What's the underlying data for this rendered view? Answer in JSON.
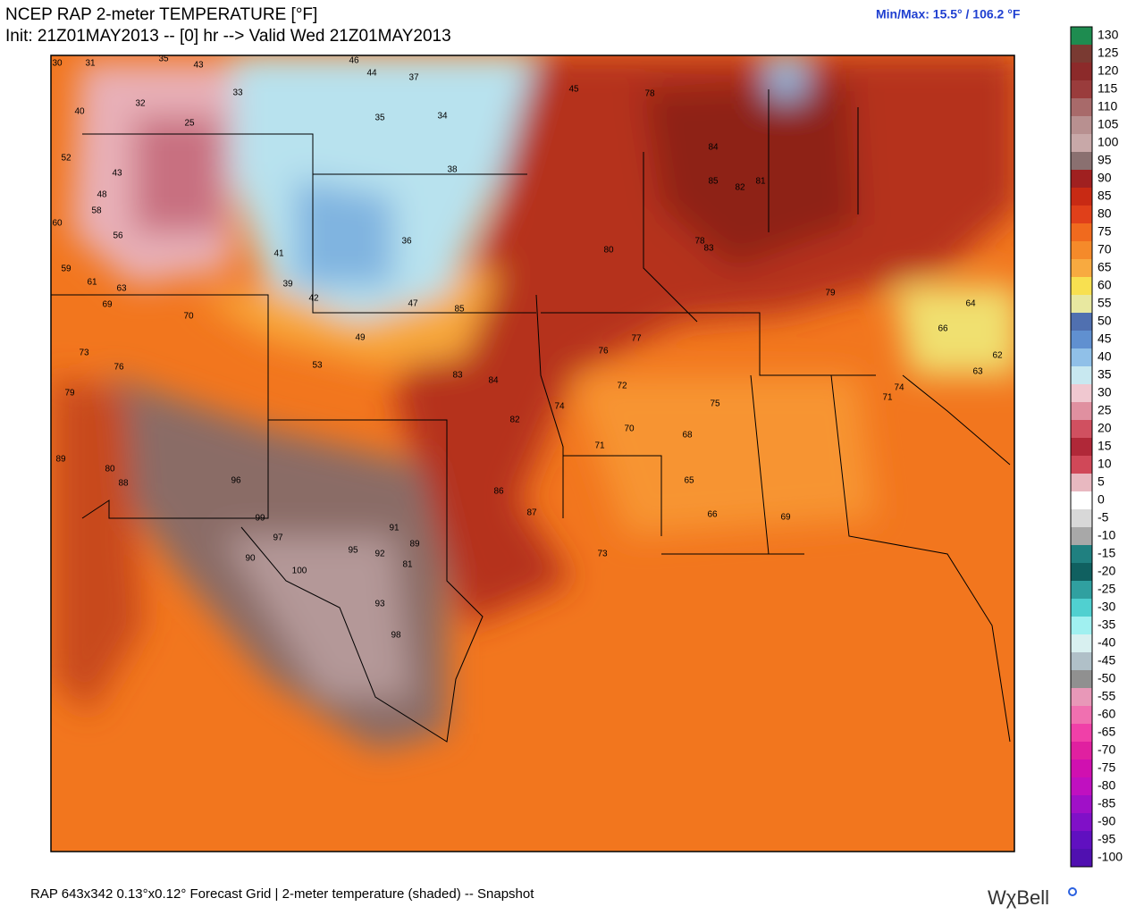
{
  "header": {
    "title": "NCEP RAP 2-meter TEMPERATURE [°F]",
    "init": "Init: 21Z01MAY2013 -- [0] hr --> Valid Wed 21Z01MAY2013",
    "minmax": "Min/Max:  15.5° / 106.2 °F"
  },
  "colorbar": {
    "ticks": [
      130,
      125,
      120,
      115,
      110,
      105,
      100,
      95,
      90,
      85,
      80,
      75,
      70,
      65,
      60,
      55,
      50,
      45,
      40,
      35,
      30,
      25,
      20,
      15,
      10,
      5,
      0,
      -5,
      -10,
      -15,
      -20,
      -25,
      -30,
      -35,
      -40,
      -45,
      -50,
      -55,
      -60,
      -65,
      -70,
      -75,
      -80,
      -85,
      -90,
      -95,
      -100
    ],
    "colors": [
      "#1e8c50",
      "#7a3a32",
      "#8c2a2a",
      "#9a3c3c",
      "#a86a6a",
      "#b89090",
      "#c8a8a8",
      "#8a7070",
      "#a02020",
      "#c82a14",
      "#e0401a",
      "#f06a1e",
      "#f58a2a",
      "#f8aa40",
      "#f8e050",
      "#e8e8a0",
      "#5070b0",
      "#6090d0",
      "#90c0e8",
      "#c8e8f0",
      "#f0c8d0",
      "#e090a0",
      "#d05060",
      "#b02838",
      "#d04858",
      "#e8b8c0",
      "#ffffff",
      "#d8d8d8",
      "#a8a8a8",
      "#208080",
      "#106060",
      "#30a0a0",
      "#50d0d0",
      "#a0f0f0",
      "#d8f0f0",
      "#b0c0c8",
      "#909090",
      "#e898b8",
      "#f070b0",
      "#f040a8",
      "#e020a0",
      "#d010b0",
      "#c010c0",
      "#a010c8",
      "#8010c8",
      "#6010c0",
      "#5010b0"
    ]
  },
  "stations": [
    30,
    31,
    35,
    43,
    46,
    44,
    37,
    33,
    40,
    32,
    25,
    52,
    43,
    48,
    58,
    56,
    60,
    59,
    61,
    63,
    69,
    70,
    73,
    76,
    79,
    80,
    88,
    89,
    96,
    99,
    97,
    100,
    90,
    95,
    98,
    92,
    93,
    91,
    89,
    81,
    83,
    85,
    84,
    82,
    86,
    87,
    78,
    77,
    76,
    74,
    72,
    70,
    68,
    66,
    65,
    71,
    73,
    75,
    69,
    80,
    79,
    78,
    74,
    71,
    84,
    85,
    83,
    82,
    81,
    62,
    64,
    66,
    63,
    45,
    38,
    35,
    34,
    36,
    41,
    47,
    53,
    49,
    42,
    39
  ],
  "footer": {
    "left": "RAP 643x342 0.13°x0.12° Forecast Grid | 2-meter temperature (shaded) -- Snapshot",
    "logo": "WχBell"
  }
}
